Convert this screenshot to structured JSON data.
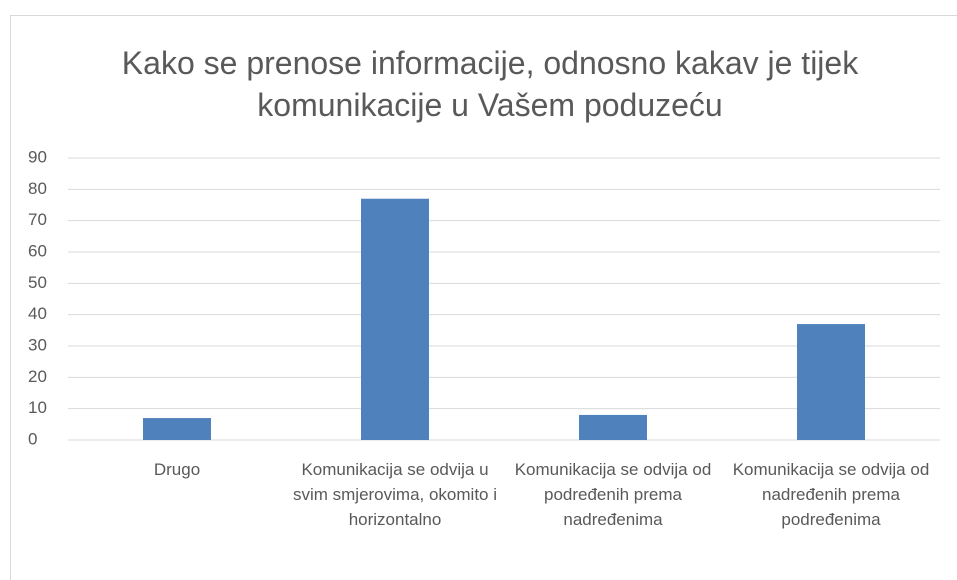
{
  "chart_data": {
    "type": "bar",
    "title": "Kako se prenose informacije, odnosno kakav je tijek komunikacije u Vašem poduzeću",
    "categories": [
      "Drugo",
      "Komunikacija se odvija u svim smjerovima, okomito i horizontalno",
      "Komunikacija se odvija od podređenih prema nadređenima",
      "Komunikacija se odvija od nadređenih prema podređenima"
    ],
    "values": [
      7,
      77,
      8,
      37
    ],
    "color": "#4f81bd",
    "ylim": [
      0,
      90
    ],
    "yticks": [
      0,
      10,
      20,
      30,
      40,
      50,
      60,
      70,
      80,
      90
    ],
    "grid": true
  }
}
